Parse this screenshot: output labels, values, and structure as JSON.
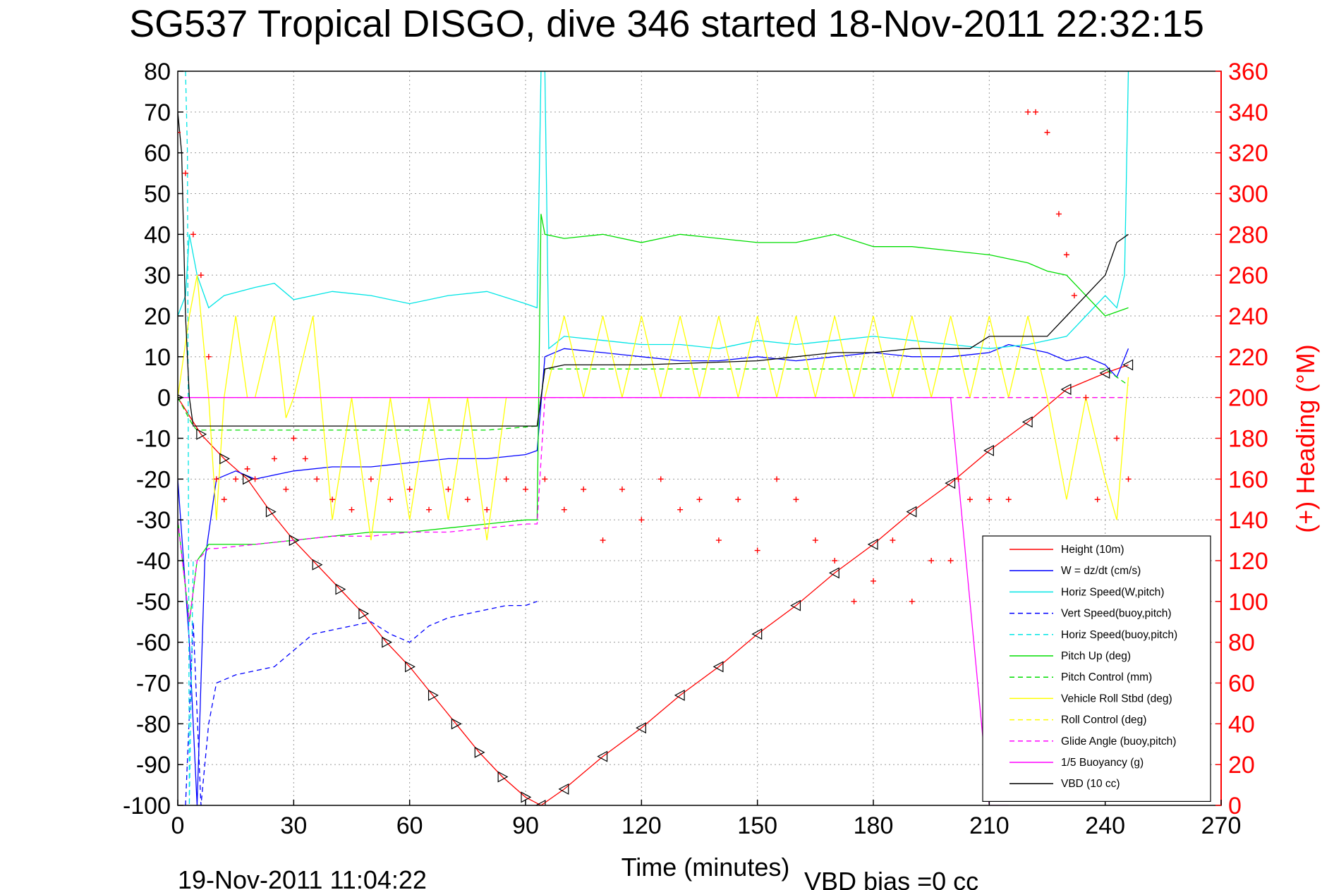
{
  "chart_data": {
    "type": "line",
    "title": "SG537 Tropical DISGO, dive 346 started 18-Nov-2011 22:32:15",
    "xlabel": "Time (minutes)",
    "ylabel": "",
    "ylabel_right": "(+) Heading (°M)",
    "xlim": [
      0,
      270
    ],
    "ylim": [
      -100,
      80
    ],
    "ylim_right": [
      0,
      360
    ],
    "xticks": [
      "0",
      "30",
      "60",
      "90",
      "120",
      "150",
      "180",
      "210",
      "240",
      "270"
    ],
    "yticks": [
      "80",
      "70",
      "60",
      "50",
      "40",
      "30",
      "20",
      "10",
      "0",
      "-10",
      "-20",
      "-30",
      "-40",
      "-50",
      "-60",
      "-70",
      "-80",
      "-90",
      "-100"
    ],
    "yticks_right": [
      "360",
      "340",
      "320",
      "300",
      "280",
      "260",
      "240",
      "220",
      "200",
      "180",
      "160",
      "140",
      "120",
      "100",
      "80",
      "60",
      "40",
      "20",
      "0"
    ],
    "grid": true,
    "legend_position": "bottom-right",
    "footer_left": "19-Nov-2011 11:04:22",
    "footer_right": "VBD bias =0 cc",
    "series": [
      {
        "name": "Height (10m)",
        "color": "#ff0000",
        "style": "solid",
        "axis": "left",
        "x": [
          0,
          6,
          12,
          18,
          24,
          30,
          36,
          42,
          48,
          54,
          60,
          66,
          72,
          78,
          84,
          90,
          94,
          100,
          110,
          120,
          130,
          140,
          150,
          160,
          170,
          180,
          190,
          200,
          210,
          220,
          230,
          240,
          246
        ],
        "y": [
          0,
          -9,
          -15,
          -20,
          -28,
          -35,
          -41,
          -47,
          -53,
          -60,
          -66,
          -73,
          -80,
          -87,
          -93,
          -98,
          -100,
          -96,
          -88,
          -81,
          -73,
          -66,
          -58,
          -51,
          -43,
          -36,
          -28,
          -21,
          -13,
          -6,
          2,
          6,
          8
        ]
      },
      {
        "name": "W = dz/dt (cm/s)",
        "color": "#0000ff",
        "style": "solid",
        "axis": "left",
        "x": [
          0,
          3,
          5,
          7,
          10,
          15,
          20,
          30,
          40,
          50,
          60,
          70,
          80,
          90,
          93,
          95,
          100,
          110,
          120,
          130,
          140,
          150,
          160,
          170,
          180,
          190,
          200,
          210,
          215,
          220,
          225,
          230,
          235,
          240,
          243,
          246
        ],
        "y": [
          -20,
          -60,
          -100,
          -40,
          -20,
          -18,
          -20,
          -18,
          -17,
          -17,
          -16,
          -15,
          -15,
          -14,
          -13,
          10,
          12,
          11,
          10,
          9,
          9,
          10,
          9,
          10,
          11,
          10,
          10,
          11,
          13,
          12,
          11,
          9,
          10,
          8,
          5,
          12
        ]
      },
      {
        "name": "Horiz Speed(W,pitch)",
        "color": "#00e5e5",
        "style": "solid",
        "axis": "left",
        "x": [
          0,
          2,
          3,
          5,
          8,
          12,
          20,
          25,
          30,
          40,
          50,
          60,
          70,
          80,
          90,
          93,
          94,
          95,
          96,
          100,
          110,
          120,
          130,
          140,
          150,
          160,
          170,
          180,
          190,
          200,
          210,
          220,
          230,
          235,
          240,
          243,
          245,
          246
        ],
        "y": [
          20,
          25,
          40,
          30,
          22,
          25,
          27,
          28,
          24,
          26,
          25,
          23,
          25,
          26,
          23,
          22,
          80,
          80,
          12,
          15,
          14,
          13,
          13,
          12,
          14,
          13,
          14,
          15,
          14,
          13,
          12,
          13,
          15,
          20,
          25,
          22,
          30,
          80
        ]
      },
      {
        "name": "Vert Speed(buoy,pitch)",
        "color": "#0000ff",
        "style": "dashed",
        "axis": "left",
        "x": [
          2,
          4,
          6,
          8,
          10,
          15,
          20,
          25,
          30,
          35,
          40,
          45,
          50,
          55,
          60,
          65,
          70,
          75,
          80,
          85,
          90,
          93
        ],
        "y": [
          -100,
          -55,
          -100,
          -80,
          -70,
          -68,
          -67,
          -66,
          -62,
          -58,
          -57,
          -56,
          -55,
          -58,
          -60,
          -56,
          -54,
          -53,
          -52,
          -51,
          -51,
          -50
        ]
      },
      {
        "name": "Horiz Speed(buoy,pitch)",
        "color": "#00e5e5",
        "style": "dashed",
        "axis": "left",
        "x": [
          2,
          2.5,
          3,
          4
        ],
        "y": [
          80,
          60,
          -100,
          -40
        ]
      },
      {
        "name": "Pitch Up (deg)",
        "color": "#00dd00",
        "style": "solid",
        "axis": "left",
        "x": [
          0,
          3,
          5,
          8,
          10,
          20,
          30,
          40,
          50,
          60,
          70,
          80,
          90,
          93,
          94,
          95,
          100,
          110,
          120,
          130,
          140,
          150,
          160,
          170,
          180,
          190,
          200,
          210,
          220,
          225,
          230,
          235,
          240,
          246
        ],
        "y": [
          -30,
          -55,
          -40,
          -36,
          -36,
          -36,
          -35,
          -34,
          -33,
          -33,
          -32,
          -31,
          -30,
          -30,
          45,
          40,
          39,
          40,
          38,
          40,
          39,
          38,
          38,
          40,
          37,
          37,
          36,
          35,
          33,
          31,
          30,
          25,
          20,
          22
        ]
      },
      {
        "name": "Pitch Control (mm)",
        "color": "#00dd00",
        "style": "dashed",
        "axis": "left",
        "x": [
          0,
          4,
          5,
          20,
          40,
          60,
          80,
          93,
          95,
          120,
          150,
          180,
          210,
          240,
          246
        ],
        "y": [
          0,
          -7,
          -8,
          -8,
          -8,
          -8,
          -8,
          -7,
          7,
          7,
          7,
          7,
          7,
          7,
          3
        ]
      },
      {
        "name": "Vehicle Roll Stbd (deg)",
        "color": "#ffff00",
        "style": "solid",
        "axis": "left",
        "x": [
          0,
          3,
          5,
          8,
          10,
          12,
          15,
          18,
          20,
          25,
          28,
          30,
          35,
          40,
          45,
          50,
          55,
          60,
          65,
          70,
          75,
          80,
          85,
          90,
          93,
          95,
          100,
          105,
          110,
          115,
          120,
          125,
          130,
          135,
          140,
          145,
          150,
          155,
          160,
          165,
          170,
          175,
          180,
          185,
          190,
          195,
          200,
          205,
          210,
          215,
          220,
          225,
          230,
          235,
          240,
          243,
          246
        ],
        "y": [
          0,
          20,
          30,
          0,
          -30,
          0,
          20,
          0,
          0,
          20,
          -5,
          0,
          20,
          -30,
          0,
          -35,
          0,
          -30,
          0,
          -30,
          0,
          -35,
          0,
          0,
          0,
          0,
          20,
          0,
          20,
          0,
          20,
          0,
          20,
          0,
          20,
          0,
          20,
          0,
          20,
          0,
          20,
          0,
          20,
          0,
          20,
          0,
          20,
          0,
          20,
          0,
          20,
          0,
          -25,
          0,
          -20,
          -30,
          5
        ]
      },
      {
        "name": "Roll Control (deg)",
        "color": "#ffff00",
        "style": "dashed",
        "axis": "left",
        "x": [
          0,
          5,
          10,
          30,
          60,
          90,
          93,
          95,
          120,
          150,
          180,
          210,
          230,
          240,
          246
        ],
        "y": [
          0,
          0,
          0,
          0,
          0,
          0,
          0,
          0,
          0,
          0,
          0,
          0,
          0,
          0,
          0
        ]
      },
      {
        "name": "Glide Angle (buoy,pitch)",
        "color": "#ff00ff",
        "style": "dashed",
        "axis": "left",
        "x": [
          0,
          3,
          5,
          8,
          10,
          20,
          30,
          40,
          50,
          60,
          70,
          80,
          90,
          93,
          95,
          120,
          150,
          180,
          210,
          230,
          246
        ],
        "y": [
          -30,
          -55,
          -40,
          -37,
          -37,
          -36,
          -35,
          -34,
          -34,
          -33,
          -33,
          -32,
          -31,
          -31,
          0,
          0,
          0,
          0,
          0,
          0,
          0
        ]
      },
      {
        "name": "1/5 Buoyancy (g)",
        "color": "#ff00ff",
        "style": "solid",
        "axis": "left",
        "x": [
          0,
          5,
          10,
          60,
          93,
          95,
          120,
          160,
          200,
          210,
          215
        ],
        "y": [
          0,
          0,
          0,
          0,
          0,
          0,
          0,
          0,
          0,
          -100,
          -100
        ]
      },
      {
        "name": "VBD (10 cc)",
        "color": "#000000",
        "style": "solid",
        "axis": "left",
        "x": [
          0,
          1,
          2,
          3,
          4,
          30,
          60,
          93,
          95,
          100,
          120,
          150,
          160,
          170,
          180,
          190,
          200,
          205,
          210,
          215,
          220,
          225,
          230,
          235,
          238,
          240,
          243,
          246
        ],
        "y": [
          70,
          60,
          20,
          0,
          -7,
          -7,
          -7,
          -7,
          7,
          8,
          8,
          9,
          10,
          11,
          11,
          12,
          12,
          12,
          15,
          15,
          15,
          15,
          20,
          25,
          28,
          30,
          38,
          40
        ]
      },
      {
        "name": "Heading",
        "color": "#ff0000",
        "style": "markers",
        "axis": "right",
        "x": [
          0,
          2,
          4,
          6,
          8,
          10,
          12,
          15,
          18,
          20,
          25,
          28,
          30,
          33,
          36,
          40,
          45,
          50,
          55,
          60,
          65,
          70,
          75,
          80,
          85,
          90,
          95,
          100,
          105,
          110,
          115,
          120,
          125,
          130,
          135,
          140,
          145,
          150,
          155,
          160,
          165,
          170,
          175,
          180,
          185,
          190,
          195,
          200,
          202,
          205,
          210,
          215,
          220,
          222,
          225,
          228,
          230,
          232,
          235,
          238,
          240,
          243,
          246
        ],
        "y": [
          330,
          310,
          280,
          260,
          220,
          160,
          150,
          160,
          165,
          160,
          170,
          155,
          180,
          170,
          160,
          150,
          145,
          160,
          150,
          155,
          145,
          155,
          150,
          145,
          160,
          155,
          160,
          145,
          155,
          130,
          155,
          140,
          160,
          145,
          150,
          130,
          150,
          125,
          160,
          150,
          130,
          120,
          100,
          110,
          130,
          100,
          120,
          120,
          160,
          150,
          150,
          150,
          340,
          340,
          330,
          290,
          270,
          250,
          200,
          150,
          130,
          180,
          160
        ]
      }
    ]
  }
}
